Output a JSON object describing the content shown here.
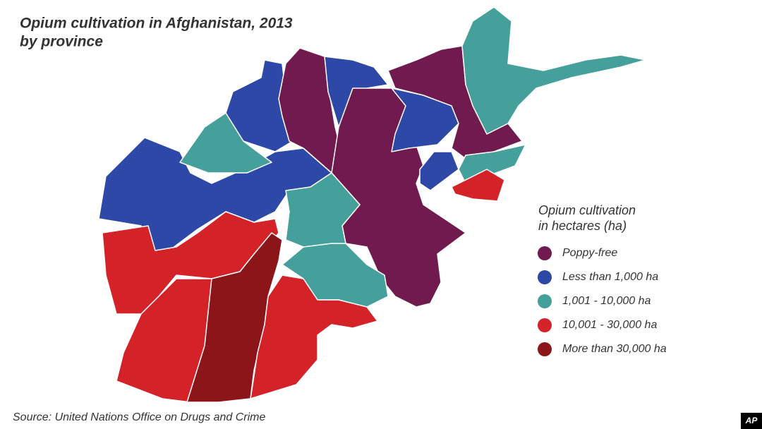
{
  "title": [
    "Opium cultivation in Afghanistan, 2013",
    "by province"
  ],
  "legend": {
    "title": [
      "Opium cultivation",
      "in hectares (ha)"
    ],
    "items": [
      {
        "label": "Poppy-free",
        "color": "#701a4f"
      },
      {
        "label": "Less than 1,000 ha",
        "color": "#2e48a8"
      },
      {
        "label": "1,001 - 10,000 ha",
        "color": "#45a09b"
      },
      {
        "label": "10,001 - 30,000 ha",
        "color": "#d42229"
      },
      {
        "label": "More than 30,000 ha",
        "color": "#8b1519"
      }
    ]
  },
  "source": "Source: United Nations Office on Drugs and Crime",
  "credit": "AP"
}
